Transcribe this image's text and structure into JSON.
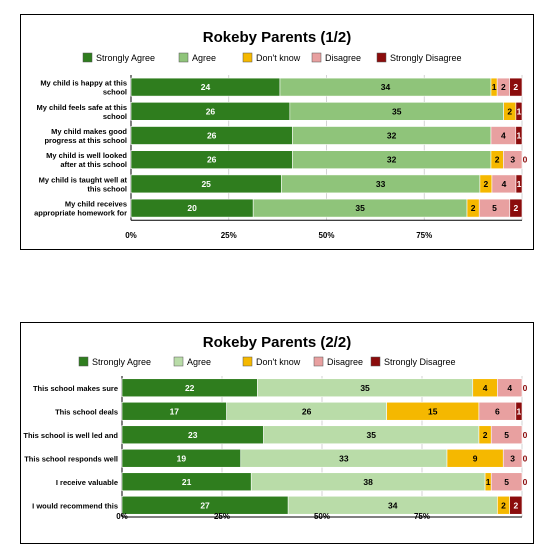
{
  "colors": {
    "strongly_agree": "#2f7d1e",
    "agree_1": "#8fc47a",
    "agree_2": "#b9dca8",
    "dont_know": "#f5b800",
    "disagree": "#e8a0a0",
    "strongly_disagree": "#8b0c0c"
  },
  "chart_data": [
    {
      "type": "bar",
      "orientation": "horizontal-stacked-100",
      "title": "Rokeby Parents (1/2)",
      "legend_position": "top",
      "grid": true,
      "xlim": [
        0,
        100
      ],
      "x_ticks": [
        "0%",
        "25%",
        "50%",
        "75%"
      ],
      "categories": [
        "My child is happy at this school",
        "My child feels safe at this school",
        "My child makes good progress at this school",
        "My child is well looked after at this school",
        "My child is taught well at this school",
        "My child receives appropriate homework for"
      ],
      "category_lines": [
        [
          "My child is happy at this",
          "school"
        ],
        [
          "My child feels safe at this",
          "school"
        ],
        [
          "My child makes good",
          "progress at this school"
        ],
        [
          "My child is well looked",
          "after at this school"
        ],
        [
          "My child is taught well at",
          "this school"
        ],
        [
          "My child receives",
          "appropriate homework for"
        ]
      ],
      "series": [
        {
          "name": "Strongly Agree",
          "values": [
            24,
            26,
            26,
            26,
            25,
            20
          ]
        },
        {
          "name": "Agree",
          "values": [
            34,
            35,
            32,
            32,
            33,
            35
          ]
        },
        {
          "name": "Don't know",
          "values": [
            1,
            2,
            0,
            2,
            2,
            2
          ]
        },
        {
          "name": "Disagree",
          "values": [
            2,
            0,
            4,
            3,
            4,
            5
          ]
        },
        {
          "name": "Strongly Disagree",
          "values": [
            2,
            1,
            1,
            0,
            1,
            2
          ]
        }
      ]
    },
    {
      "type": "bar",
      "orientation": "horizontal-stacked-100",
      "title": "Rokeby Parents (2/2)",
      "legend_position": "top",
      "grid": true,
      "xlim": [
        0,
        100
      ],
      "x_ticks": [
        "0%",
        "25%",
        "50%",
        "75%"
      ],
      "categories": [
        "This school makes sure",
        "This school deals",
        "This school is well led and",
        "This school responds well",
        "I receive valuable",
        "I would recommend this"
      ],
      "category_lines": [
        [
          "This school makes sure"
        ],
        [
          "This school deals"
        ],
        [
          "This school is well led and"
        ],
        [
          "This school responds well"
        ],
        [
          "I receive valuable"
        ],
        [
          "I would recommend this"
        ]
      ],
      "series": [
        {
          "name": "Strongly Agree",
          "values": [
            22,
            17,
            23,
            19,
            21,
            27
          ]
        },
        {
          "name": "Agree",
          "values": [
            35,
            26,
            35,
            33,
            38,
            34
          ]
        },
        {
          "name": "Don't know",
          "values": [
            4,
            15,
            2,
            9,
            1,
            2
          ]
        },
        {
          "name": "Disagree",
          "values": [
            4,
            6,
            5,
            3,
            5,
            0
          ]
        },
        {
          "name": "Strongly Disagree",
          "values": [
            0,
            1,
            0,
            0,
            0,
            2
          ]
        }
      ]
    }
  ]
}
